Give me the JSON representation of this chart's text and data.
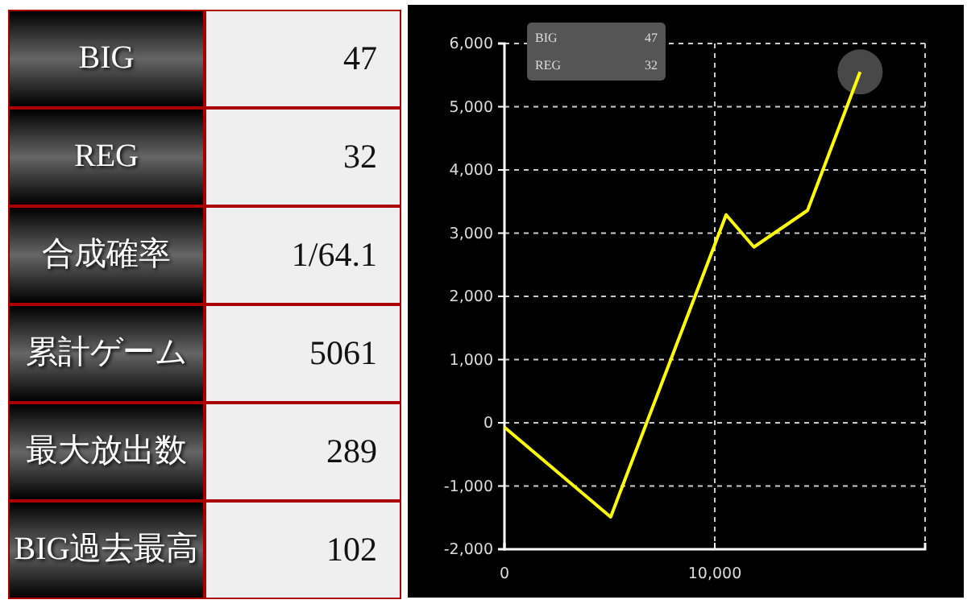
{
  "chart_data": [
    {
      "type": "other",
      "annotations": [
        "BIG",
        "47",
        "REG",
        "32",
        "合成確率",
        "1/64.1",
        "累計ゲーム",
        "5061",
        "最大放出数",
        "289",
        "BIG過去最高",
        "102"
      ]
    },
    {
      "type": "line",
      "x": [
        0,
        5050,
        10540,
        11860,
        14410,
        16910
      ],
      "series": [
        {
          "color": "#ffff00",
          "values": [
            -70,
            -1490,
            3290,
            2780,
            3360,
            5550
          ]
        }
      ],
      "xlim": [
        0,
        20000
      ],
      "xticks": [
        {
          "value": 0,
          "label": "0"
        },
        {
          "value": 10000,
          "label": "10,000"
        },
        {
          "value": 20000,
          "label": null
        }
      ],
      "ylim": [
        -2000,
        6000
      ],
      "yticks": [
        {
          "value": -2000,
          "label": "-2,000"
        },
        {
          "value": -1000,
          "label": "-1,000"
        },
        {
          "value": 0,
          "label": "0"
        },
        {
          "value": 1000,
          "label": "1,000"
        },
        {
          "value": 2000,
          "label": "2,000"
        },
        {
          "value": 3000,
          "label": "3,000"
        },
        {
          "value": 4000,
          "label": "4,000"
        },
        {
          "value": 5000,
          "label": "5,000"
        },
        {
          "value": 6000,
          "label": "6,000"
        }
      ],
      "grid": true,
      "annotations": [
        "BIG",
        "47",
        "REG",
        "32"
      ]
    }
  ]
}
